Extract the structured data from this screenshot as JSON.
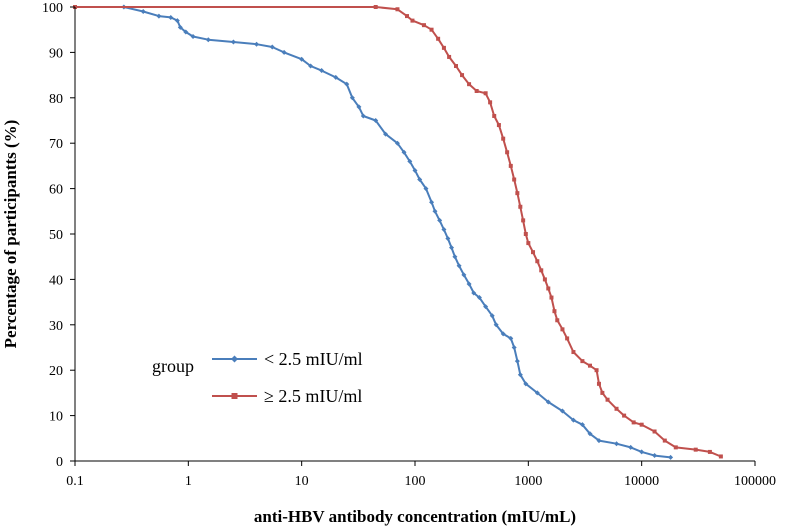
{
  "chart_data": {
    "type": "line",
    "title": "",
    "xlabel": "anti-HBV antibody concentration (mIU/mL)",
    "ylabel": "Percentage of participantts (%)",
    "x_scale": "log",
    "xlim": [
      0.1,
      100000
    ],
    "ylim": [
      0,
      100
    ],
    "x_ticks": [
      "0.1",
      "1",
      "10",
      "100",
      "1000",
      "10000",
      "100000"
    ],
    "y_ticks": [
      "0",
      "10",
      "20",
      "30",
      "40",
      "50",
      "60",
      "70",
      "80",
      "90",
      "100"
    ],
    "grid": false,
    "legend": {
      "title": "group",
      "placement": "lower-left"
    },
    "series": [
      {
        "name": "< 2.5 mIU/ml",
        "color": "#4a7ebb",
        "marker": "diamond",
        "points": [
          [
            0.27,
            100
          ],
          [
            0.4,
            99
          ],
          [
            0.55,
            98
          ],
          [
            0.7,
            97.7
          ],
          [
            0.8,
            97
          ],
          [
            0.85,
            95.5
          ],
          [
            0.95,
            94.5
          ],
          [
            1.1,
            93.5
          ],
          [
            1.5,
            92.8
          ],
          [
            2.5,
            92.3
          ],
          [
            4,
            91.8
          ],
          [
            5.5,
            91.2
          ],
          [
            7,
            90
          ],
          [
            10,
            88.5
          ],
          [
            12,
            87
          ],
          [
            15,
            86
          ],
          [
            20,
            84.5
          ],
          [
            25,
            83
          ],
          [
            28,
            80
          ],
          [
            32,
            78
          ],
          [
            35,
            76
          ],
          [
            45,
            75
          ],
          [
            55,
            72
          ],
          [
            70,
            70
          ],
          [
            80,
            68
          ],
          [
            90,
            66
          ],
          [
            100,
            64
          ],
          [
            110,
            62
          ],
          [
            125,
            60
          ],
          [
            140,
            57
          ],
          [
            150,
            55
          ],
          [
            165,
            53
          ],
          [
            180,
            51
          ],
          [
            195,
            49
          ],
          [
            210,
            47
          ],
          [
            225,
            45
          ],
          [
            245,
            43
          ],
          [
            270,
            41
          ],
          [
            300,
            39
          ],
          [
            330,
            37
          ],
          [
            370,
            36
          ],
          [
            420,
            34
          ],
          [
            480,
            32
          ],
          [
            520,
            30
          ],
          [
            600,
            28
          ],
          [
            700,
            27
          ],
          [
            750,
            25
          ],
          [
            800,
            22
          ],
          [
            850,
            19
          ],
          [
            950,
            17
          ],
          [
            1200,
            15
          ],
          [
            1500,
            13
          ],
          [
            2000,
            11
          ],
          [
            2500,
            9
          ],
          [
            3000,
            8
          ],
          [
            3500,
            6
          ],
          [
            4200,
            4.5
          ],
          [
            6000,
            3.8
          ],
          [
            8000,
            3
          ],
          [
            10000,
            2
          ],
          [
            13000,
            1.2
          ],
          [
            18000,
            0.8
          ]
        ]
      },
      {
        "name": "≥ 2.5 mIU/ml",
        "color": "#c0504d",
        "marker": "square",
        "points": [
          [
            0.1,
            100
          ],
          [
            45,
            100
          ],
          [
            70,
            99.5
          ],
          [
            85,
            98
          ],
          [
            95,
            97
          ],
          [
            120,
            96
          ],
          [
            140,
            95
          ],
          [
            160,
            93
          ],
          [
            180,
            91
          ],
          [
            200,
            89
          ],
          [
            230,
            87
          ],
          [
            260,
            85
          ],
          [
            300,
            83
          ],
          [
            350,
            81.5
          ],
          [
            420,
            81
          ],
          [
            460,
            79
          ],
          [
            500,
            76
          ],
          [
            550,
            74
          ],
          [
            600,
            71
          ],
          [
            650,
            68
          ],
          [
            700,
            65
          ],
          [
            750,
            62
          ],
          [
            800,
            59
          ],
          [
            850,
            56
          ],
          [
            900,
            53
          ],
          [
            950,
            50
          ],
          [
            1000,
            48
          ],
          [
            1100,
            46
          ],
          [
            1200,
            44
          ],
          [
            1300,
            42
          ],
          [
            1400,
            40
          ],
          [
            1500,
            38
          ],
          [
            1600,
            36
          ],
          [
            1700,
            33
          ],
          [
            1800,
            31
          ],
          [
            2000,
            29
          ],
          [
            2200,
            27
          ],
          [
            2500,
            24
          ],
          [
            3000,
            22
          ],
          [
            3500,
            21
          ],
          [
            4000,
            20
          ],
          [
            4200,
            17
          ],
          [
            4500,
            15
          ],
          [
            5000,
            13.5
          ],
          [
            6000,
            11.5
          ],
          [
            7000,
            10
          ],
          [
            8500,
            8.5
          ],
          [
            10000,
            8
          ],
          [
            13000,
            6.5
          ],
          [
            16000,
            4.5
          ],
          [
            20000,
            3
          ],
          [
            30000,
            2.5
          ],
          [
            40000,
            2
          ],
          [
            50000,
            1
          ]
        ]
      }
    ]
  }
}
